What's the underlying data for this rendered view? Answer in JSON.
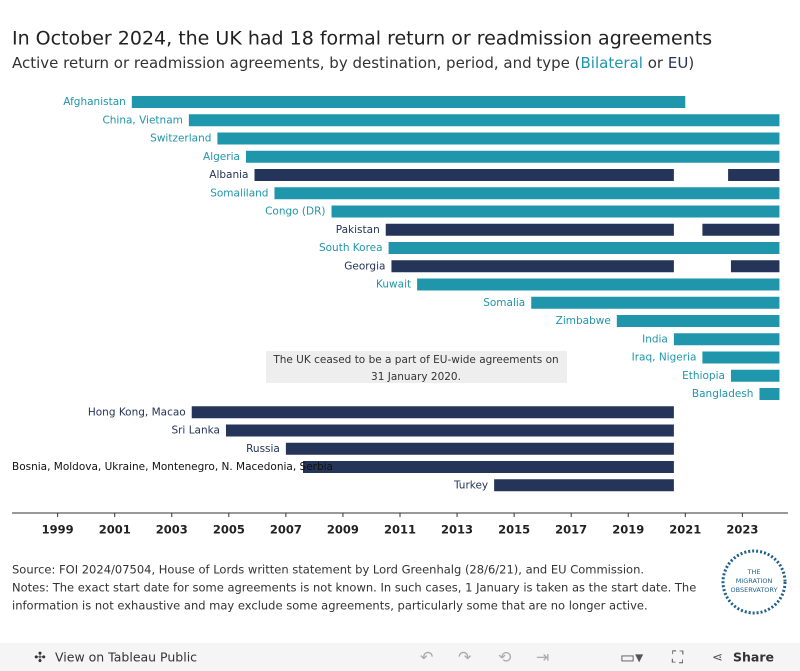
{
  "chart_data": {
    "type": "gantt",
    "title": "In October 2024, the UK had 18 formal return or readmission agreements",
    "subtitle": [
      "Active return or readmission agreements, by destination, period, and type (",
      " or ",
      ")"
    ],
    "types": [
      {
        "name": "Bilateral",
        "color": "#1f96ab"
      },
      {
        "name": "EU",
        "color": "#253459"
      }
    ],
    "rows": [
      {
        "name": "Afghanistan",
        "type": "Bilateral",
        "segments": [
          [
            2001.6,
            2021.0
          ]
        ]
      },
      {
        "name": "China, Vietnam",
        "type": "Bilateral",
        "segments": [
          [
            2003.6,
            2024.3
          ]
        ]
      },
      {
        "name": "Switzerland",
        "type": "Bilateral",
        "segments": [
          [
            2004.6,
            2024.3
          ]
        ]
      },
      {
        "name": "Algeria",
        "type": "Bilateral",
        "segments": [
          [
            2005.6,
            2024.3
          ]
        ]
      },
      {
        "name": "Albania",
        "type": "EU",
        "segments": [
          [
            2005.9,
            2020.6
          ],
          [
            2022.5,
            2024.3
          ]
        ]
      },
      {
        "name": "Somaliland",
        "type": "Bilateral",
        "segments": [
          [
            2006.6,
            2024.3
          ]
        ]
      },
      {
        "name": "Congo (DR)",
        "type": "Bilateral",
        "segments": [
          [
            2008.6,
            2024.3
          ]
        ]
      },
      {
        "name": "Pakistan",
        "type": "EU",
        "segments": [
          [
            2010.5,
            2020.6
          ],
          [
            2021.6,
            2024.3
          ]
        ]
      },
      {
        "name": "South Korea",
        "type": "Bilateral",
        "segments": [
          [
            2010.6,
            2024.3
          ]
        ]
      },
      {
        "name": "Georgia",
        "type": "EU",
        "segments": [
          [
            2010.7,
            2020.6
          ],
          [
            2022.6,
            2024.3
          ]
        ]
      },
      {
        "name": "Kuwait",
        "type": "Bilateral",
        "segments": [
          [
            2011.6,
            2024.3
          ]
        ]
      },
      {
        "name": "Somalia",
        "type": "Bilateral",
        "segments": [
          [
            2015.6,
            2024.3
          ]
        ]
      },
      {
        "name": "Zimbabwe",
        "type": "Bilateral",
        "segments": [
          [
            2018.6,
            2024.3
          ]
        ]
      },
      {
        "name": "India",
        "type": "Bilateral",
        "segments": [
          [
            2020.6,
            2024.3
          ]
        ]
      },
      {
        "name": "Iraq, Nigeria",
        "type": "Bilateral",
        "segments": [
          [
            2021.6,
            2024.3
          ]
        ]
      },
      {
        "name": "Ethiopia",
        "type": "Bilateral",
        "segments": [
          [
            2022.6,
            2024.3
          ]
        ]
      },
      {
        "name": "Bangladesh",
        "type": "Bilateral",
        "segments": [
          [
            2023.6,
            2024.3
          ]
        ]
      },
      {
        "name": "Hong Kong, Macao",
        "type": "EU",
        "segments": [
          [
            2003.7,
            2020.6
          ]
        ]
      },
      {
        "name": "Sri Lanka",
        "type": "EU",
        "segments": [
          [
            2004.9,
            2020.6
          ]
        ]
      },
      {
        "name": "Russia",
        "type": "EU",
        "segments": [
          [
            2007.0,
            2020.6
          ]
        ]
      },
      {
        "name": "Bosnia, Moldova, Ukraine, Montenegro, N. Macedonia, Serbia",
        "type": "EU",
        "segments": [
          [
            2007.6,
            2020.6
          ]
        ]
      },
      {
        "name": "Turkey",
        "type": "EU",
        "segments": [
          [
            2014.3,
            2020.6
          ]
        ]
      }
    ],
    "annotation": [
      "The UK ceased to be a part of EU-wide agreements on",
      "31 January 2020."
    ],
    "xlim": [
      1997.4,
      2024.6
    ],
    "xticks": [
      1999,
      2001,
      2003,
      2005,
      2007,
      2009,
      2011,
      2013,
      2015,
      2017,
      2019,
      2021,
      2023
    ],
    "source": "Source: FOI 2024/07504, House of Lords written statement by Lord Greenhalg (28/6/21), and EU Commission.",
    "notes": [
      "Notes: The exact start date for some agreements is not known. In such cases, 1 January is taken as the start date. The",
      "information is not exhaustive and may exclude some agreements, particularly some that are no longer active."
    ]
  },
  "logo": [
    "THE",
    "MIGRATION",
    "OBSERVATORY"
  ],
  "toolbar": {
    "view": "View on Tableau Public",
    "share": "Share"
  }
}
